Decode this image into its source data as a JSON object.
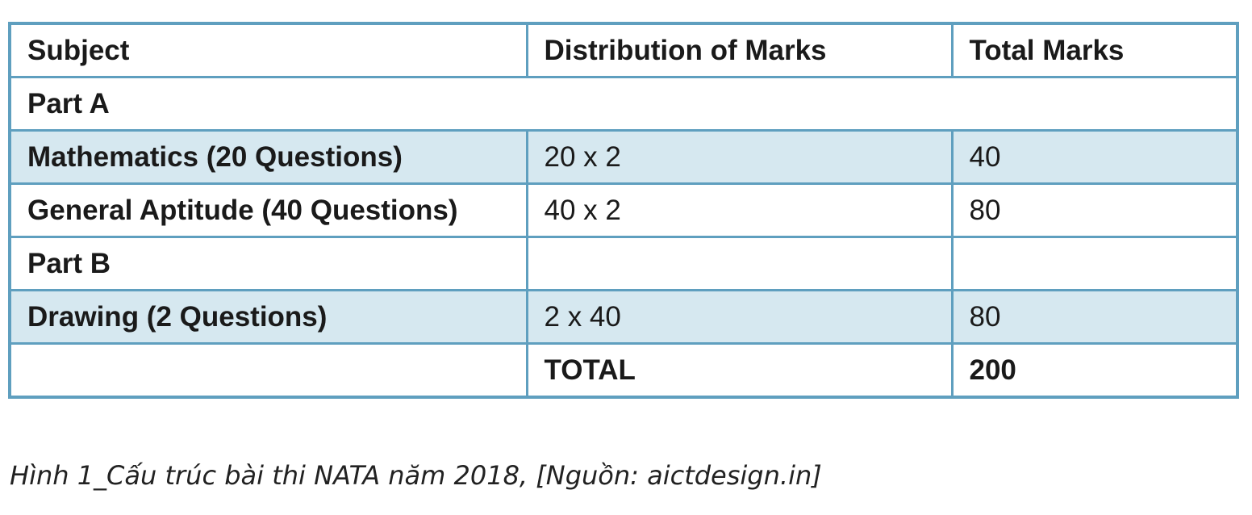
{
  "table": {
    "header": [
      "Subject",
      "Distribution of Marks",
      "Total Marks"
    ],
    "part_a_label": "Part A",
    "rows": [
      {
        "subject": "Mathematics (20 Questions)",
        "distribution": "20 x 2",
        "total": "40"
      },
      {
        "subject": "General Aptitude (40 Questions)",
        "distribution": "40 x 2",
        "total": "80"
      }
    ],
    "part_b_label": "Part B",
    "part_b_rows": [
      {
        "subject": "Drawing (2 Questions)",
        "distribution": "2 x 40",
        "total": "80"
      }
    ],
    "total_row": {
      "label": "TOTAL",
      "value": "200"
    }
  },
  "caption": "Hình 1_Cấu trúc bài thi NATA năm 2018, [Nguồn: aictdesign.in]",
  "colors": {
    "border": "#5f9fbf",
    "shaded_row": "#d6e8f0"
  }
}
